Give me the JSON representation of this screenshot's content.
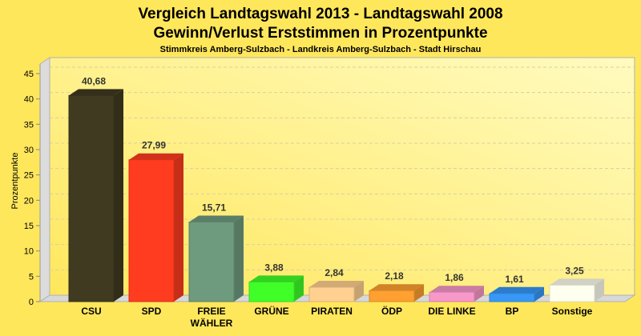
{
  "chart_data": {
    "type": "bar",
    "title": "Vergleich Landtagswahl 2013 - Landtagswahl 2008",
    "subtitle": "Gewinn/Verlust Erststimmen in Prozentpunkte",
    "subsubtitle": "Stimmkreis Amberg-Sulzbach - Landkreis Amberg-Sulzbach - Stadt Hirschau",
    "xlabel": "",
    "ylabel": "Prozentpunkte",
    "ylim": [
      0,
      45
    ],
    "yticks": [
      0,
      5,
      10,
      15,
      20,
      25,
      30,
      35,
      40,
      45
    ],
    "grid": true,
    "categories": [
      "CSU",
      "SPD",
      "FREIE WÄHLER",
      "GRÜNE",
      "PIRATEN",
      "ÖDP",
      "DIE LINKE",
      "BP",
      "Sonstige"
    ],
    "values": [
      40.68,
      27.99,
      15.71,
      3.88,
      2.84,
      2.18,
      1.86,
      1.61,
      3.25
    ],
    "value_labels": [
      "40,68",
      "27,99",
      "15,71",
      "3,88",
      "2,84",
      "2,18",
      "1,86",
      "1,61",
      "3,25"
    ],
    "colors": [
      "#403a20",
      "#ff3b20",
      "#6e9a7e",
      "#40ff28",
      "#ffd090",
      "#ffa030",
      "#f898c8",
      "#3898f8",
      "#fffff0"
    ]
  }
}
